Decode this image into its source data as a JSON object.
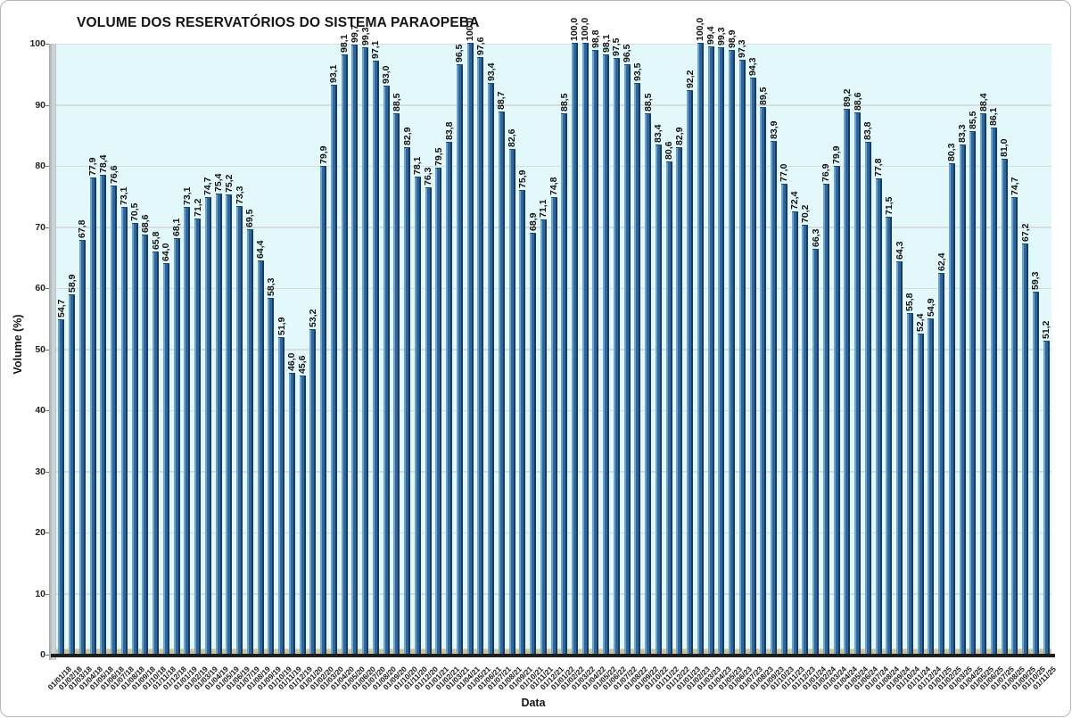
{
  "header": {
    "title": "VOLUME DOS RESERVATÓRIOS DO SISTEMA PARAOPEBA"
  },
  "y_axis": {
    "title": "Volume (%)",
    "ticks": [
      0,
      10,
      20,
      30,
      40,
      50,
      60,
      70,
      80,
      90,
      100
    ]
  },
  "x_axis": {
    "title": "Data"
  },
  "colors": {
    "bar_body": "#2d679e",
    "bar_highlight": "#73a2c9",
    "bar_shadow": "#173c63",
    "plot_background": "#e3f8fa",
    "floor": "#cdc39a",
    "gridline": "#d7dddf"
  },
  "chart_data": {
    "type": "bar",
    "title": "VOLUME DOS RESERVATÓRIOS DO SISTEMA PARAOPEBA",
    "xlabel": "Data",
    "ylabel": "Volume (%)",
    "ylim": [
      0,
      100
    ],
    "grid": true,
    "legend": "none",
    "value_labels": "rotated-vertical, comma decimal",
    "categories": [
      "01/01/18",
      "01/02/18",
      "01/03/18",
      "01/04/18",
      "01/05/18",
      "01/06/18",
      "01/07/18",
      "01/08/18",
      "01/09/18",
      "01/10/18",
      "01/11/18",
      "01/12/18",
      "01/01/19",
      "01/02/19",
      "01/03/19",
      "01/04/19",
      "01/05/19",
      "01/06/19",
      "01/07/19",
      "01/08/19",
      "01/09/19",
      "01/10/19",
      "01/11/19",
      "01/12/19",
      "01/01/20",
      "01/02/20",
      "01/03/20",
      "01/04/20",
      "01/05/20",
      "01/06/20",
      "01/07/20",
      "01/08/20",
      "01/09/20",
      "01/10/20",
      "01/11/20",
      "01/12/20",
      "01/01/21",
      "01/02/21",
      "01/03/21",
      "01/04/21",
      "01/05/21",
      "01/06/21",
      "01/07/21",
      "01/08/21",
      "01/09/21",
      "01/10/21",
      "01/11/21",
      "01/12/21",
      "01/01/22",
      "01/02/22",
      "01/03/22",
      "01/04/22",
      "01/05/22",
      "01/06/22",
      "01/07/22",
      "01/08/22",
      "01/09/22",
      "01/10/22",
      "01/11/22",
      "01/12/22",
      "01/01/23",
      "01/02/23",
      "01/03/23",
      "01/04/23",
      "01/05/23",
      "01/06/23",
      "01/07/23",
      "01/08/23",
      "01/09/23",
      "01/10/23",
      "01/11/23",
      "01/12/23",
      "01/01/24",
      "01/02/24",
      "01/03/24",
      "01/04/24",
      "01/05/24",
      "01/06/24",
      "01/07/24",
      "01/08/24",
      "01/09/24",
      "01/10/24",
      "01/11/24",
      "01/12/24",
      "01/01/25",
      "01/02/25",
      "01/03/25",
      "01/04/25",
      "01/05/25",
      "01/06/25",
      "01/07/25",
      "01/08/25",
      "01/09/25",
      "01/10/25",
      "01/11/25"
    ],
    "values": [
      54.7,
      58.9,
      67.8,
      77.9,
      78.4,
      76.6,
      73.1,
      70.5,
      68.6,
      65.8,
      64.0,
      68.1,
      73.1,
      71.2,
      74.7,
      75.4,
      75.2,
      73.3,
      69.5,
      64.4,
      58.3,
      51.9,
      46.0,
      45.6,
      53.2,
      79.9,
      93.1,
      98.1,
      99.7,
      99.3,
      97.1,
      93.0,
      88.5,
      82.9,
      78.1,
      76.3,
      79.5,
      83.8,
      96.5,
      100.0,
      97.6,
      93.4,
      88.7,
      82.6,
      75.9,
      68.9,
      71.1,
      74.8,
      88.5,
      100.0,
      100.0,
      98.8,
      98.1,
      97.5,
      96.5,
      93.5,
      88.5,
      83.4,
      80.6,
      82.9,
      92.2,
      100.0,
      99.4,
      99.3,
      98.9,
      97.3,
      94.3,
      89.5,
      83.9,
      77.0,
      72.4,
      70.2,
      66.3,
      76.9,
      79.9,
      89.2,
      88.6,
      83.8,
      77.8,
      71.5,
      64.3,
      55.8,
      52.4,
      54.9,
      62.4,
      80.3,
      83.3,
      85.5,
      88.4,
      86.1,
      81.0,
      74.7,
      67.2,
      59.3,
      51.2
    ]
  }
}
